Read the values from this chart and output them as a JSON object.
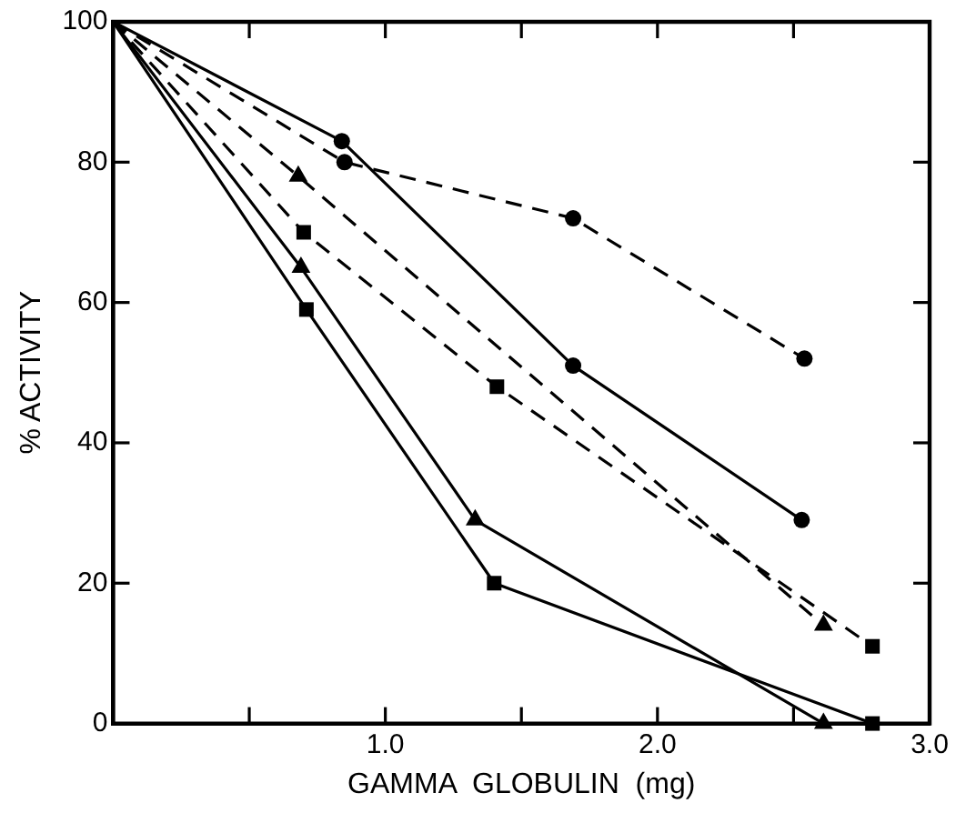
{
  "chart_data": {
    "type": "line",
    "xlabel": "GAMMA  GLOBULIN  (mg)",
    "ylabel": "% ACTIVITY",
    "xlim": [
      0,
      3
    ],
    "ylim": [
      0,
      100
    ],
    "xticks": [
      {
        "value": 0.5,
        "label": null
      },
      {
        "value": 1,
        "label": "1.0"
      },
      {
        "value": 1.5,
        "label": null
      },
      {
        "value": 2,
        "label": "2.0"
      },
      {
        "value": 2.5,
        "label": null
      },
      {
        "value": 3,
        "label": "3.0"
      }
    ],
    "yticks": [
      0,
      20,
      40,
      60,
      80,
      100
    ],
    "grid": false,
    "legend": false,
    "series": [
      {
        "color": "#000000",
        "marker": "circle",
        "line_style": "solid",
        "x": [
          0,
          0.84,
          1.69,
          2.53
        ],
        "values": [
          100,
          83,
          51,
          29
        ]
      },
      {
        "color": "#000000",
        "marker": "circle",
        "line_style": "dashed",
        "x": [
          0,
          0.85,
          1.69,
          2.54
        ],
        "values": [
          100,
          80,
          72,
          52
        ]
      },
      {
        "color": "#000000",
        "marker": "triangle",
        "line_style": "dashed",
        "x": [
          0,
          0.68,
          2.61
        ],
        "values": [
          100,
          78,
          14
        ]
      },
      {
        "color": "#000000",
        "marker": "square",
        "line_style": "dashed",
        "x": [
          0,
          0.7,
          1.41,
          2.79
        ],
        "values": [
          100,
          70,
          48,
          11
        ]
      },
      {
        "color": "#000000",
        "marker": "triangle",
        "line_style": "solid",
        "x": [
          0,
          0.69,
          1.33,
          2.61
        ],
        "values": [
          100,
          65,
          29,
          0
        ]
      },
      {
        "color": "#000000",
        "marker": "square",
        "line_style": "solid",
        "x": [
          0,
          0.71,
          1.4,
          2.79
        ],
        "values": [
          100,
          59,
          20,
          0
        ]
      }
    ]
  }
}
